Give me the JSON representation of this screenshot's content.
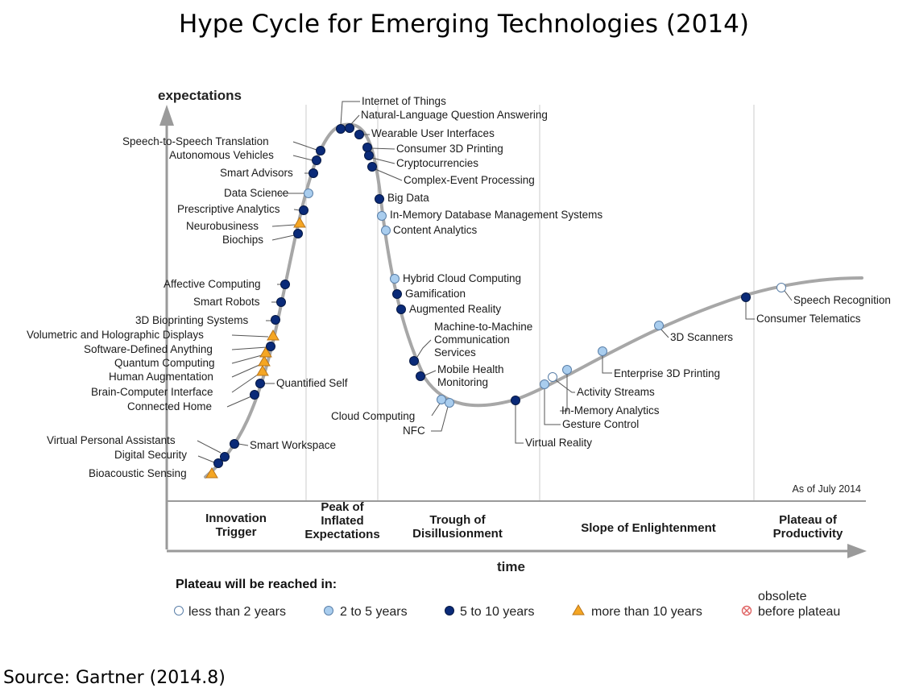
{
  "chart_data": {
    "type": "scatter",
    "title": "Hype Cycle for Emerging Technologies (2014)",
    "source": "Source: Gartner (2014.8)",
    "ylabel": "expectations",
    "xlabel": "time",
    "note": "As of July 2014",
    "phases": [
      {
        "id": "innovation",
        "lines": [
          "Innovation",
          "Trigger"
        ]
      },
      {
        "id": "peak",
        "lines": [
          "Peak of",
          "Inflated",
          "Expectations"
        ]
      },
      {
        "id": "trough",
        "lines": [
          "Trough of",
          "Disillusionment"
        ]
      },
      {
        "id": "slope",
        "lines": [
          "Slope of Enlightenment"
        ]
      },
      {
        "id": "plateau",
        "lines": [
          "Plateau of",
          "Productivity"
        ]
      }
    ],
    "legend": {
      "title": "Plateau will be reached in:",
      "items": [
        {
          "key": "lt2",
          "label": "less than 2 years",
          "marker": "circle",
          "color": "#ffffff"
        },
        {
          "key": "2to5",
          "label": "2 to 5 years",
          "marker": "circle",
          "color": "#a9cdee"
        },
        {
          "key": "5to10",
          "label": "5 to 10 years",
          "marker": "circle",
          "color": "#0a2a78"
        },
        {
          "key": "gt10",
          "label": "more than 10 years",
          "marker": "triangle",
          "color": "#f5a623"
        },
        {
          "key": "obsolete",
          "label_lines": [
            "obsolete",
            "before plateau"
          ],
          "marker": "crossed-circle",
          "color": "#e06666"
        }
      ]
    },
    "technologies": [
      {
        "name": "Bioacoustic Sensing",
        "cat": "gt10"
      },
      {
        "name": "Digital Security",
        "cat": "5to10"
      },
      {
        "name": "Virtual Personal Assistants",
        "cat": "5to10"
      },
      {
        "name": "Smart Workspace",
        "cat": "5to10"
      },
      {
        "name": "Connected Home",
        "cat": "5to10"
      },
      {
        "name": "Quantified Self",
        "cat": "5to10"
      },
      {
        "name": "Brain-Computer Interface",
        "cat": "gt10"
      },
      {
        "name": "Human Augmentation",
        "cat": "gt10"
      },
      {
        "name": "Quantum Computing",
        "cat": "gt10"
      },
      {
        "name": "Software-Defined Anything",
        "cat": "5to10"
      },
      {
        "name": "Volumetric and Holographic Displays",
        "cat": "gt10"
      },
      {
        "name": "3D Bioprinting Systems",
        "cat": "5to10"
      },
      {
        "name": "Smart Robots",
        "cat": "5to10"
      },
      {
        "name": "Affective Computing",
        "cat": "5to10"
      },
      {
        "name": "Biochips",
        "cat": "5to10"
      },
      {
        "name": "Neurobusiness",
        "cat": "gt10"
      },
      {
        "name": "Prescriptive Analytics",
        "cat": "5to10"
      },
      {
        "name": "Data Science",
        "cat": "2to5"
      },
      {
        "name": "Smart Advisors",
        "cat": "5to10"
      },
      {
        "name": "Autonomous Vehicles",
        "cat": "5to10"
      },
      {
        "name": "Speech-to-Speech Translation",
        "cat": "5to10"
      },
      {
        "name": "Internet of Things",
        "cat": "5to10"
      },
      {
        "name": "Natural-Language Question Answering",
        "cat": "5to10"
      },
      {
        "name": "Wearable User Interfaces",
        "cat": "5to10"
      },
      {
        "name": "Consumer 3D Printing",
        "cat": "5to10"
      },
      {
        "name": "Cryptocurrencies",
        "cat": "5to10"
      },
      {
        "name": "Complex-Event Processing",
        "cat": "5to10"
      },
      {
        "name": "Big Data",
        "cat": "5to10"
      },
      {
        "name": "In-Memory Database Management Systems",
        "cat": "2to5"
      },
      {
        "name": "Content Analytics",
        "cat": "2to5"
      },
      {
        "name": "Hybrid Cloud Computing",
        "cat": "2to5"
      },
      {
        "name": "Gamification",
        "cat": "5to10"
      },
      {
        "name": "Augmented Reality",
        "cat": "5to10"
      },
      {
        "name": "Machine-to-Machine Communication Services",
        "cat": "5to10",
        "lines": [
          "Machine-to-Machine",
          "Communication",
          "Services"
        ]
      },
      {
        "name": "Mobile Health Monitoring",
        "cat": "5to10",
        "lines": [
          "Mobile Health",
          "Monitoring"
        ]
      },
      {
        "name": "Cloud Computing",
        "cat": "2to5"
      },
      {
        "name": "NFC",
        "cat": "2to5"
      },
      {
        "name": "Virtual Reality",
        "cat": "5to10"
      },
      {
        "name": "Gesture Control",
        "cat": "2to5"
      },
      {
        "name": "In-Memory Analytics",
        "cat": "2to5"
      },
      {
        "name": "Activity Streams",
        "cat": "lt2"
      },
      {
        "name": "Enterprise 3D Printing",
        "cat": "2to5"
      },
      {
        "name": "3D Scanners",
        "cat": "2to5"
      },
      {
        "name": "Consumer Telematics",
        "cat": "5to10"
      },
      {
        "name": "Speech Recognition",
        "cat": "lt2"
      }
    ]
  }
}
